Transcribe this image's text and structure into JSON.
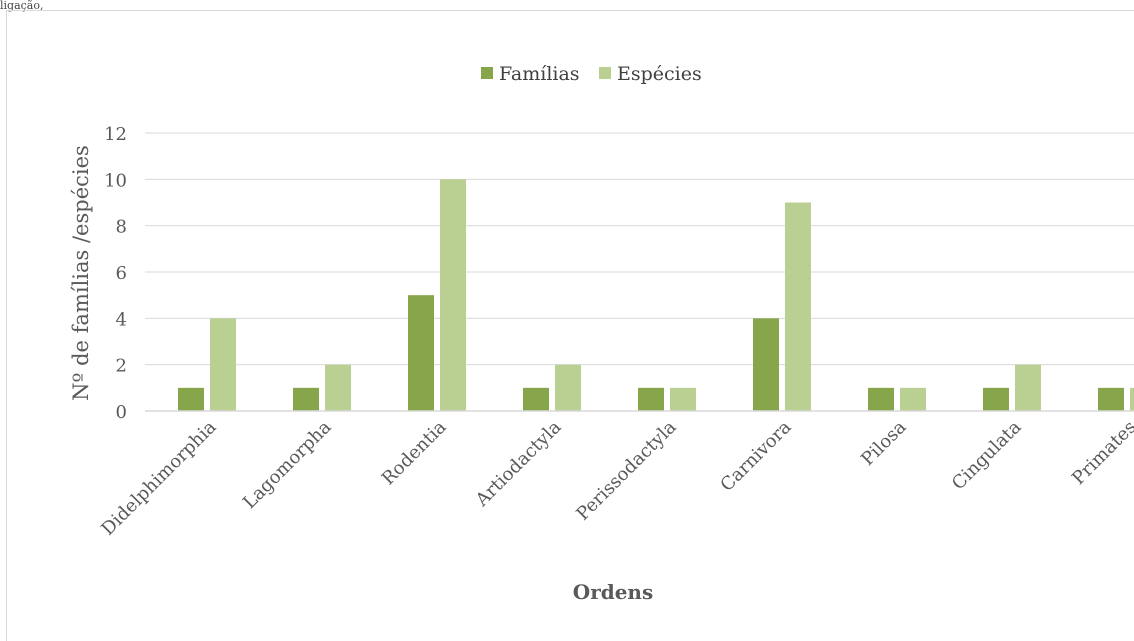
{
  "caption_fragment": "ligação,",
  "chart_data": {
    "type": "bar",
    "title": "",
    "xlabel": "Ordens",
    "ylabel": "Nº de famílias /espécies",
    "ylim": [
      0,
      12
    ],
    "yticks": [
      0,
      2,
      4,
      6,
      8,
      10,
      12
    ],
    "grid": true,
    "legend_position": "top-center",
    "categories": [
      "Didelphimorphia",
      "Lagomorpha",
      "Rodentia",
      "Artiodactyla",
      "Perissodactyla",
      "Carnivora",
      "Pilosa",
      "Cingulata",
      "Primates"
    ],
    "series": [
      {
        "name": "Famílias",
        "color": "#87a64b",
        "values": [
          1,
          1,
          5,
          1,
          1,
          4,
          1,
          1,
          1
        ]
      },
      {
        "name": "Espécies",
        "color": "#b9d092",
        "values": [
          4,
          2,
          10,
          2,
          1,
          9,
          1,
          2,
          1
        ]
      }
    ]
  }
}
